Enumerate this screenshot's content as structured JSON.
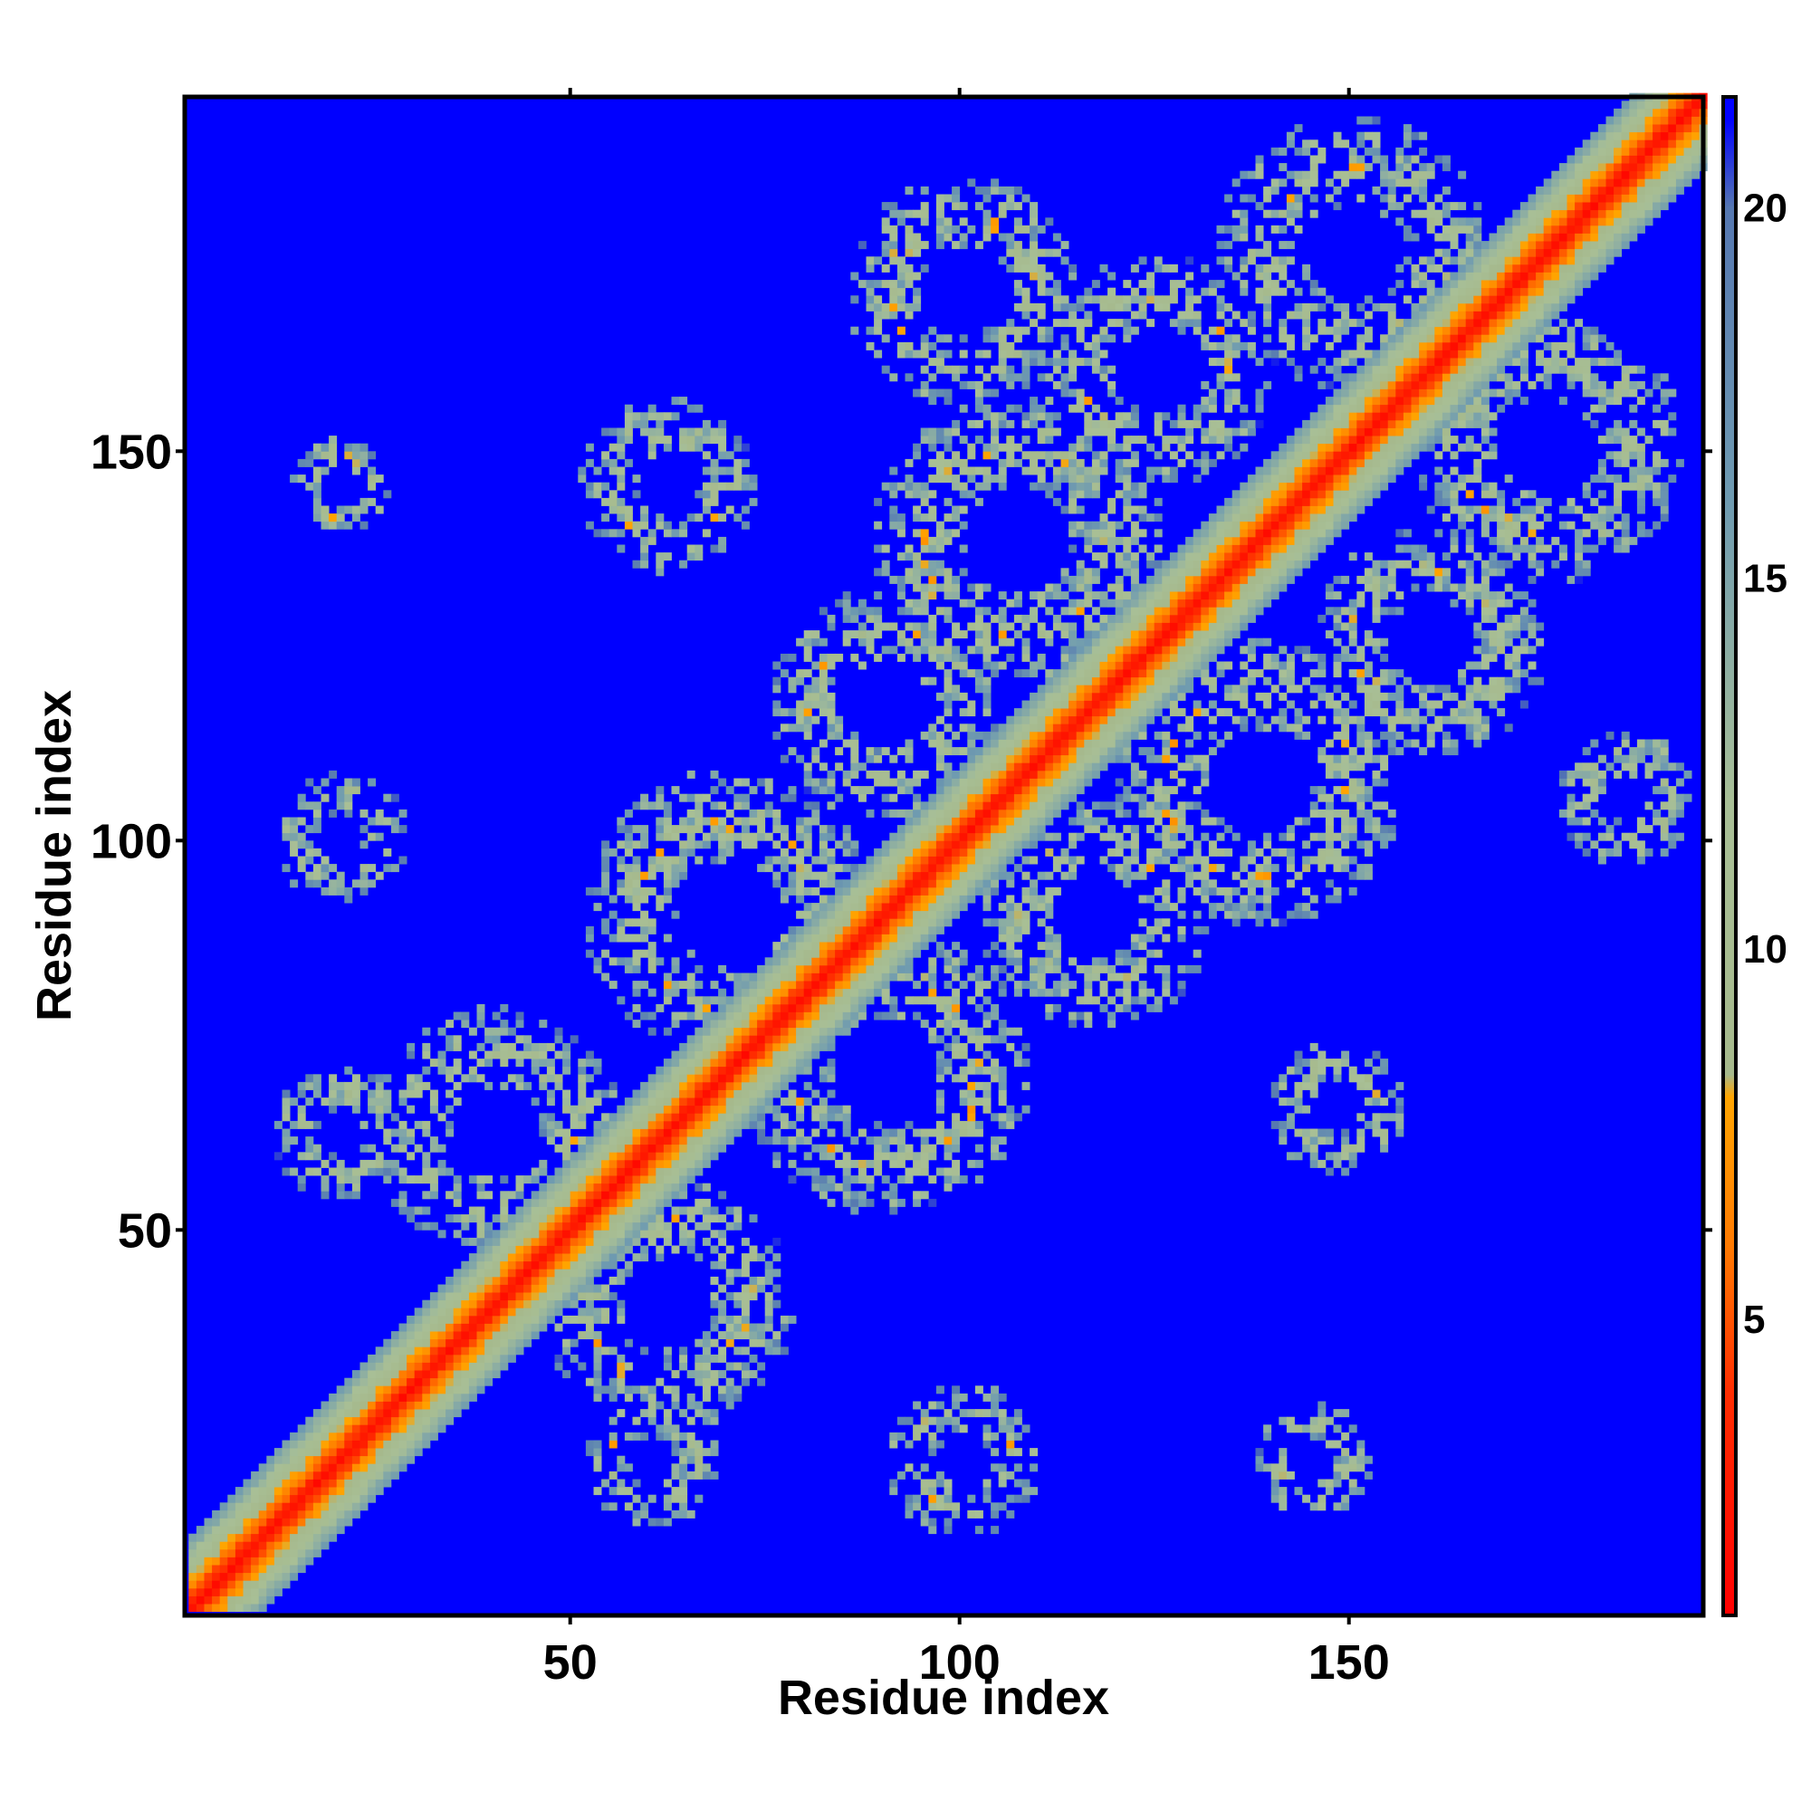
{
  "chart_data": {
    "type": "heatmap",
    "title": "",
    "xlabel": "Residue index",
    "ylabel": "Residue index",
    "n_residues": 195,
    "xlim": [
      1,
      195
    ],
    "ylim": [
      1,
      195
    ],
    "x_ticks": [
      50,
      100,
      150
    ],
    "y_ticks": [
      50,
      100,
      150
    ],
    "colorbar": {
      "range": [
        1,
        21.5
      ],
      "ticks": [
        5,
        10,
        15,
        20
      ],
      "stops": [
        {
          "value": 1.0,
          "color": "#ff0000"
        },
        {
          "value": 4.0,
          "color": "#ff2d00"
        },
        {
          "value": 6.0,
          "color": "#ff7a00"
        },
        {
          "value": 8.0,
          "color": "#ffa500"
        },
        {
          "value": 8.3,
          "color": "#a6b98c"
        },
        {
          "value": 12.0,
          "color": "#a8bf96"
        },
        {
          "value": 16.0,
          "color": "#6f9bb0"
        },
        {
          "value": 20.0,
          "color": "#5577b0"
        },
        {
          "value": 21.2,
          "color": "#0000ff"
        }
      ]
    },
    "background_color": "#0000ff",
    "contact_clusters": [
      {
        "x": 70,
        "y": 90,
        "radius": 15
      },
      {
        "x": 90,
        "y": 70,
        "radius": 15
      },
      {
        "x": 107,
        "y": 138,
        "radius": 15
      },
      {
        "x": 138,
        "y": 107,
        "radius": 15
      },
      {
        "x": 150,
        "y": 175,
        "radius": 14
      },
      {
        "x": 175,
        "y": 150,
        "radius": 14
      },
      {
        "x": 40,
        "y": 62,
        "radius": 13
      },
      {
        "x": 62,
        "y": 40,
        "radius": 13
      },
      {
        "x": 90,
        "y": 117,
        "radius": 12
      },
      {
        "x": 117,
        "y": 90,
        "radius": 12
      },
      {
        "x": 125,
        "y": 160,
        "radius": 12
      },
      {
        "x": 160,
        "y": 125,
        "radius": 12
      },
      {
        "x": 20,
        "y": 145,
        "radius": 5
      },
      {
        "x": 62,
        "y": 145,
        "radius": 9
      },
      {
        "x": 100,
        "y": 170,
        "radius": 12
      },
      {
        "x": 20,
        "y": 100,
        "radius": 7
      },
      {
        "x": 20,
        "y": 62,
        "radius": 7
      },
      {
        "x": 148,
        "y": 65,
        "radius": 7
      },
      {
        "x": 145,
        "y": 20,
        "radius": 6
      },
      {
        "x": 100,
        "y": 20,
        "radius": 8
      },
      {
        "x": 60,
        "y": 20,
        "radius": 7
      },
      {
        "x": 185,
        "y": 105,
        "radius": 7
      }
    ]
  }
}
